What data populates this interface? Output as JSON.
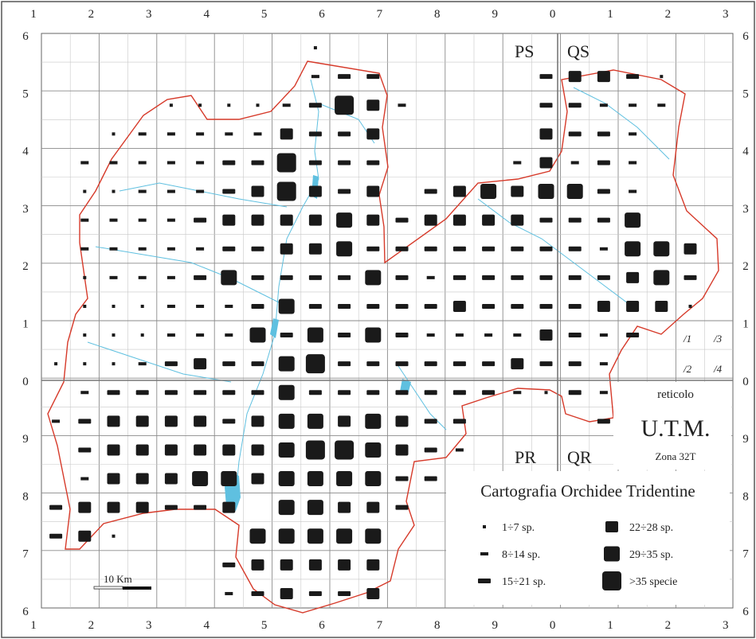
{
  "title": "Cartografia Orchidee Tridentine",
  "grid": {
    "name": "reticolo",
    "system": "U.T.M.",
    "zone": "Zona 32T",
    "top_labels": [
      "1",
      "2",
      "3",
      "4",
      "5",
      "6",
      "7",
      "8",
      "9",
      "0",
      "1",
      "2",
      "3"
    ],
    "bottom_labels": [
      "1",
      "2",
      "3",
      "4",
      "5",
      "6",
      "7",
      "8",
      "9",
      "0",
      "1",
      "2",
      "3"
    ],
    "left_labels": [
      "6",
      "5",
      "4",
      "3",
      "2",
      "1",
      "0",
      "9",
      "8",
      "7",
      "6"
    ],
    "right_labels": [
      "6",
      "5",
      "4",
      "3",
      "2",
      "1",
      "0",
      "9",
      "8",
      "7",
      "6"
    ]
  },
  "quadrants": {
    "nw": "PS",
    "ne": "QS",
    "sw": "PR",
    "se": "QR"
  },
  "subcell_key": [
    "/1",
    "/3",
    "/2",
    "/4"
  ],
  "scale_bar": {
    "label": "10 Km"
  },
  "legend": {
    "items": [
      {
        "label": "1÷7 sp.",
        "level": 1
      },
      {
        "label": "8÷14 sp.",
        "level": 2
      },
      {
        "label": "15÷21 sp.",
        "level": 3
      },
      {
        "label": "22÷28 sp.",
        "level": 4
      },
      {
        "label": "29÷35 sp.",
        "level": 5
      },
      {
        "label": ">35 specie",
        "level": 6
      }
    ]
  },
  "colors": {
    "border": "#d63a2a",
    "water": "#5fc0e0",
    "grid": "#9a9a9a",
    "marker": "#1a1a1a"
  },
  "cells": [
    {
      "row": 1,
      "col": 10,
      "level": 1
    },
    {
      "row": 2,
      "col": 10,
      "level": 2
    },
    {
      "row": 2,
      "col": 11,
      "level": 3
    },
    {
      "row": 2,
      "col": 12,
      "level": 3
    },
    {
      "row": 2,
      "col": 18,
      "level": 3
    },
    {
      "row": 2,
      "col": 19,
      "level": 4
    },
    {
      "row": 2,
      "col": 20,
      "level": 4
    },
    {
      "row": 2,
      "col": 21,
      "level": 3
    },
    {
      "row": 2,
      "col": 22,
      "level": 1
    },
    {
      "row": 3,
      "col": 5,
      "level": 1
    },
    {
      "row": 3,
      "col": 6,
      "level": 1
    },
    {
      "row": 3,
      "col": 7,
      "level": 1
    },
    {
      "row": 3,
      "col": 8,
      "level": 1
    },
    {
      "row": 3,
      "col": 9,
      "level": 2
    },
    {
      "row": 3,
      "col": 10,
      "level": 3
    },
    {
      "row": 3,
      "col": 11,
      "level": 6
    },
    {
      "row": 3,
      "col": 12,
      "level": 4
    },
    {
      "row": 3,
      "col": 13,
      "level": 2
    },
    {
      "row": 3,
      "col": 18,
      "level": 3
    },
    {
      "row": 3,
      "col": 19,
      "level": 3
    },
    {
      "row": 3,
      "col": 20,
      "level": 2
    },
    {
      "row": 3,
      "col": 21,
      "level": 2
    },
    {
      "row": 3,
      "col": 22,
      "level": 2
    },
    {
      "row": 4,
      "col": 3,
      "level": 1
    },
    {
      "row": 4,
      "col": 4,
      "level": 2
    },
    {
      "row": 4,
      "col": 5,
      "level": 2
    },
    {
      "row": 4,
      "col": 6,
      "level": 2
    },
    {
      "row": 4,
      "col": 7,
      "level": 2
    },
    {
      "row": 4,
      "col": 8,
      "level": 2
    },
    {
      "row": 4,
      "col": 9,
      "level": 4
    },
    {
      "row": 4,
      "col": 10,
      "level": 3
    },
    {
      "row": 4,
      "col": 11,
      "level": 3
    },
    {
      "row": 4,
      "col": 12,
      "level": 4
    },
    {
      "row": 4,
      "col": 18,
      "level": 4
    },
    {
      "row": 4,
      "col": 19,
      "level": 3
    },
    {
      "row": 4,
      "col": 20,
      "level": 3
    },
    {
      "row": 4,
      "col": 21,
      "level": 2
    },
    {
      "row": 5,
      "col": 2,
      "level": 2
    },
    {
      "row": 5,
      "col": 3,
      "level": 2
    },
    {
      "row": 5,
      "col": 4,
      "level": 2
    },
    {
      "row": 5,
      "col": 5,
      "level": 2
    },
    {
      "row": 5,
      "col": 6,
      "level": 2
    },
    {
      "row": 5,
      "col": 7,
      "level": 3
    },
    {
      "row": 5,
      "col": 8,
      "level": 3
    },
    {
      "row": 5,
      "col": 9,
      "level": 6
    },
    {
      "row": 5,
      "col": 10,
      "level": 3
    },
    {
      "row": 5,
      "col": 11,
      "level": 3
    },
    {
      "row": 5,
      "col": 12,
      "level": 3
    },
    {
      "row": 5,
      "col": 17,
      "level": 2
    },
    {
      "row": 5,
      "col": 18,
      "level": 4
    },
    {
      "row": 5,
      "col": 19,
      "level": 2
    },
    {
      "row": 5,
      "col": 20,
      "level": 3
    },
    {
      "row": 5,
      "col": 21,
      "level": 2
    },
    {
      "row": 6,
      "col": 2,
      "level": 1
    },
    {
      "row": 6,
      "col": 3,
      "level": 1
    },
    {
      "row": 6,
      "col": 4,
      "level": 2
    },
    {
      "row": 6,
      "col": 5,
      "level": 2
    },
    {
      "row": 6,
      "col": 6,
      "level": 2
    },
    {
      "row": 6,
      "col": 7,
      "level": 3
    },
    {
      "row": 6,
      "col": 8,
      "level": 4
    },
    {
      "row": 6,
      "col": 9,
      "level": 6
    },
    {
      "row": 6,
      "col": 10,
      "level": 4
    },
    {
      "row": 6,
      "col": 11,
      "level": 3
    },
    {
      "row": 6,
      "col": 12,
      "level": 4
    },
    {
      "row": 6,
      "col": 14,
      "level": 3
    },
    {
      "row": 6,
      "col": 15,
      "level": 4
    },
    {
      "row": 6,
      "col": 16,
      "level": 5
    },
    {
      "row": 6,
      "col": 17,
      "level": 4
    },
    {
      "row": 6,
      "col": 18,
      "level": 5
    },
    {
      "row": 6,
      "col": 19,
      "level": 5
    },
    {
      "row": 6,
      "col": 20,
      "level": 3
    },
    {
      "row": 6,
      "col": 21,
      "level": 2
    },
    {
      "row": 7,
      "col": 2,
      "level": 2
    },
    {
      "row": 7,
      "col": 3,
      "level": 2
    },
    {
      "row": 7,
      "col": 4,
      "level": 2
    },
    {
      "row": 7,
      "col": 5,
      "level": 2
    },
    {
      "row": 7,
      "col": 6,
      "level": 3
    },
    {
      "row": 7,
      "col": 7,
      "level": 4
    },
    {
      "row": 7,
      "col": 8,
      "level": 4
    },
    {
      "row": 7,
      "col": 9,
      "level": 4
    },
    {
      "row": 7,
      "col": 10,
      "level": 4
    },
    {
      "row": 7,
      "col": 11,
      "level": 5
    },
    {
      "row": 7,
      "col": 12,
      "level": 4
    },
    {
      "row": 7,
      "col": 13,
      "level": 3
    },
    {
      "row": 7,
      "col": 14,
      "level": 4
    },
    {
      "row": 7,
      "col": 15,
      "level": 4
    },
    {
      "row": 7,
      "col": 16,
      "level": 4
    },
    {
      "row": 7,
      "col": 17,
      "level": 4
    },
    {
      "row": 7,
      "col": 18,
      "level": 3
    },
    {
      "row": 7,
      "col": 19,
      "level": 3
    },
    {
      "row": 7,
      "col": 20,
      "level": 3
    },
    {
      "row": 7,
      "col": 21,
      "level": 5
    },
    {
      "row": 8,
      "col": 2,
      "level": 2
    },
    {
      "row": 8,
      "col": 3,
      "level": 2
    },
    {
      "row": 8,
      "col": 4,
      "level": 2
    },
    {
      "row": 8,
      "col": 5,
      "level": 2
    },
    {
      "row": 8,
      "col": 6,
      "level": 2
    },
    {
      "row": 8,
      "col": 7,
      "level": 3
    },
    {
      "row": 8,
      "col": 8,
      "level": 3
    },
    {
      "row": 8,
      "col": 9,
      "level": 4
    },
    {
      "row": 8,
      "col": 10,
      "level": 4
    },
    {
      "row": 8,
      "col": 11,
      "level": 5
    },
    {
      "row": 8,
      "col": 12,
      "level": 3
    },
    {
      "row": 8,
      "col": 13,
      "level": 3
    },
    {
      "row": 8,
      "col": 14,
      "level": 3
    },
    {
      "row": 8,
      "col": 15,
      "level": 3
    },
    {
      "row": 8,
      "col": 16,
      "level": 3
    },
    {
      "row": 8,
      "col": 17,
      "level": 3
    },
    {
      "row": 8,
      "col": 18,
      "level": 3
    },
    {
      "row": 8,
      "col": 19,
      "level": 3
    },
    {
      "row": 8,
      "col": 20,
      "level": 2
    },
    {
      "row": 8,
      "col": 21,
      "level": 5
    },
    {
      "row": 8,
      "col": 22,
      "level": 5
    },
    {
      "row": 8,
      "col": 23,
      "level": 4
    },
    {
      "row": 9,
      "col": 2,
      "level": 1
    },
    {
      "row": 9,
      "col": 3,
      "level": 2
    },
    {
      "row": 9,
      "col": 4,
      "level": 2
    },
    {
      "row": 9,
      "col": 5,
      "level": 2
    },
    {
      "row": 9,
      "col": 6,
      "level": 3
    },
    {
      "row": 9,
      "col": 7,
      "level": 5
    },
    {
      "row": 9,
      "col": 8,
      "level": 3
    },
    {
      "row": 9,
      "col": 9,
      "level": 3
    },
    {
      "row": 9,
      "col": 10,
      "level": 3
    },
    {
      "row": 9,
      "col": 11,
      "level": 3
    },
    {
      "row": 9,
      "col": 12,
      "level": 5
    },
    {
      "row": 9,
      "col": 13,
      "level": 3
    },
    {
      "row": 9,
      "col": 14,
      "level": 2
    },
    {
      "row": 9,
      "col": 15,
      "level": 3
    },
    {
      "row": 9,
      "col": 16,
      "level": 3
    },
    {
      "row": 9,
      "col": 17,
      "level": 3
    },
    {
      "row": 9,
      "col": 18,
      "level": 3
    },
    {
      "row": 9,
      "col": 19,
      "level": 3
    },
    {
      "row": 9,
      "col": 20,
      "level": 3
    },
    {
      "row": 9,
      "col": 21,
      "level": 4
    },
    {
      "row": 9,
      "col": 22,
      "level": 5
    },
    {
      "row": 9,
      "col": 23,
      "level": 3
    },
    {
      "row": 10,
      "col": 2,
      "level": 1
    },
    {
      "row": 10,
      "col": 3,
      "level": 1
    },
    {
      "row": 10,
      "col": 4,
      "level": 1
    },
    {
      "row": 10,
      "col": 5,
      "level": 2
    },
    {
      "row": 10,
      "col": 6,
      "level": 2
    },
    {
      "row": 10,
      "col": 7,
      "level": 2
    },
    {
      "row": 10,
      "col": 8,
      "level": 3
    },
    {
      "row": 10,
      "col": 9,
      "level": 5
    },
    {
      "row": 10,
      "col": 10,
      "level": 3
    },
    {
      "row": 10,
      "col": 11,
      "level": 3
    },
    {
      "row": 10,
      "col": 12,
      "level": 3
    },
    {
      "row": 10,
      "col": 13,
      "level": 3
    },
    {
      "row": 10,
      "col": 14,
      "level": 3
    },
    {
      "row": 10,
      "col": 15,
      "level": 4
    },
    {
      "row": 10,
      "col": 16,
      "level": 3
    },
    {
      "row": 10,
      "col": 17,
      "level": 3
    },
    {
      "row": 10,
      "col": 18,
      "level": 3
    },
    {
      "row": 10,
      "col": 19,
      "level": 3
    },
    {
      "row": 10,
      "col": 20,
      "level": 4
    },
    {
      "row": 10,
      "col": 21,
      "level": 4
    },
    {
      "row": 10,
      "col": 22,
      "level": 4
    },
    {
      "row": 10,
      "col": 23,
      "level": 1
    },
    {
      "row": 11,
      "col": 2,
      "level": 1
    },
    {
      "row": 11,
      "col": 3,
      "level": 1
    },
    {
      "row": 11,
      "col": 4,
      "level": 1
    },
    {
      "row": 11,
      "col": 5,
      "level": 2
    },
    {
      "row": 11,
      "col": 6,
      "level": 2
    },
    {
      "row": 11,
      "col": 7,
      "level": 2
    },
    {
      "row": 11,
      "col": 8,
      "level": 5
    },
    {
      "row": 11,
      "col": 9,
      "level": 3
    },
    {
      "row": 11,
      "col": 10,
      "level": 5
    },
    {
      "row": 11,
      "col": 11,
      "level": 3
    },
    {
      "row": 11,
      "col": 12,
      "level": 5
    },
    {
      "row": 11,
      "col": 13,
      "level": 3
    },
    {
      "row": 11,
      "col": 14,
      "level": 2
    },
    {
      "row": 11,
      "col": 15,
      "level": 2
    },
    {
      "row": 11,
      "col": 16,
      "level": 2
    },
    {
      "row": 11,
      "col": 17,
      "level": 2
    },
    {
      "row": 11,
      "col": 18,
      "level": 4
    },
    {
      "row": 11,
      "col": 19,
      "level": 3
    },
    {
      "row": 11,
      "col": 20,
      "level": 2
    },
    {
      "row": 11,
      "col": 21,
      "level": 3
    },
    {
      "row": 12,
      "col": 1,
      "level": 1
    },
    {
      "row": 12,
      "col": 2,
      "level": 1
    },
    {
      "row": 12,
      "col": 3,
      "level": 1
    },
    {
      "row": 12,
      "col": 4,
      "level": 2
    },
    {
      "row": 12,
      "col": 5,
      "level": 3
    },
    {
      "row": 12,
      "col": 6,
      "level": 4
    },
    {
      "row": 12,
      "col": 7,
      "level": 3
    },
    {
      "row": 12,
      "col": 8,
      "level": 3
    },
    {
      "row": 12,
      "col": 9,
      "level": 5
    },
    {
      "row": 12,
      "col": 10,
      "level": 6
    },
    {
      "row": 12,
      "col": 11,
      "level": 3
    },
    {
      "row": 12,
      "col": 12,
      "level": 3
    },
    {
      "row": 12,
      "col": 13,
      "level": 3
    },
    {
      "row": 12,
      "col": 14,
      "level": 3
    },
    {
      "row": 12,
      "col": 15,
      "level": 3
    },
    {
      "row": 12,
      "col": 16,
      "level": 3
    },
    {
      "row": 12,
      "col": 17,
      "level": 4
    },
    {
      "row": 12,
      "col": 18,
      "level": 3
    },
    {
      "row": 12,
      "col": 19,
      "level": 3
    },
    {
      "row": 12,
      "col": 20,
      "level": 2
    },
    {
      "row": 13,
      "col": 2,
      "level": 2
    },
    {
      "row": 13,
      "col": 3,
      "level": 3
    },
    {
      "row": 13,
      "col": 4,
      "level": 3
    },
    {
      "row": 13,
      "col": 5,
      "level": 3
    },
    {
      "row": 13,
      "col": 6,
      "level": 3
    },
    {
      "row": 13,
      "col": 7,
      "level": 3
    },
    {
      "row": 13,
      "col": 8,
      "level": 3
    },
    {
      "row": 13,
      "col": 9,
      "level": 5
    },
    {
      "row": 13,
      "col": 10,
      "level": 3
    },
    {
      "row": 13,
      "col": 11,
      "level": 3
    },
    {
      "row": 13,
      "col": 12,
      "level": 3
    },
    {
      "row": 13,
      "col": 13,
      "level": 3
    },
    {
      "row": 13,
      "col": 14,
      "level": 3
    },
    {
      "row": 13,
      "col": 15,
      "level": 3
    },
    {
      "row": 13,
      "col": 16,
      "level": 3
    },
    {
      "row": 13,
      "col": 17,
      "level": 2
    },
    {
      "row": 13,
      "col": 18,
      "level": 1
    },
    {
      "row": 13,
      "col": 19,
      "level": 3
    },
    {
      "row": 13,
      "col": 20,
      "level": 2
    },
    {
      "row": 14,
      "col": 1,
      "level": 2
    },
    {
      "row": 14,
      "col": 2,
      "level": 3
    },
    {
      "row": 14,
      "col": 3,
      "level": 4
    },
    {
      "row": 14,
      "col": 4,
      "level": 4
    },
    {
      "row": 14,
      "col": 5,
      "level": 4
    },
    {
      "row": 14,
      "col": 6,
      "level": 4
    },
    {
      "row": 14,
      "col": 7,
      "level": 3
    },
    {
      "row": 14,
      "col": 8,
      "level": 4
    },
    {
      "row": 14,
      "col": 9,
      "level": 5
    },
    {
      "row": 14,
      "col": 10,
      "level": 5
    },
    {
      "row": 14,
      "col": 11,
      "level": 4
    },
    {
      "row": 14,
      "col": 12,
      "level": 5
    },
    {
      "row": 14,
      "col": 13,
      "level": 4
    },
    {
      "row": 14,
      "col": 14,
      "level": 3
    },
    {
      "row": 14,
      "col": 15,
      "level": 3
    },
    {
      "row": 14,
      "col": 20,
      "level": 3
    },
    {
      "row": 15,
      "col": 2,
      "level": 3
    },
    {
      "row": 15,
      "col": 3,
      "level": 4
    },
    {
      "row": 15,
      "col": 4,
      "level": 4
    },
    {
      "row": 15,
      "col": 5,
      "level": 4
    },
    {
      "row": 15,
      "col": 6,
      "level": 4
    },
    {
      "row": 15,
      "col": 7,
      "level": 4
    },
    {
      "row": 15,
      "col": 8,
      "level": 4
    },
    {
      "row": 15,
      "col": 9,
      "level": 5
    },
    {
      "row": 15,
      "col": 10,
      "level": 6
    },
    {
      "row": 15,
      "col": 11,
      "level": 6
    },
    {
      "row": 15,
      "col": 12,
      "level": 5
    },
    {
      "row": 15,
      "col": 13,
      "level": 4
    },
    {
      "row": 15,
      "col": 14,
      "level": 3
    },
    {
      "row": 15,
      "col": 15,
      "level": 2
    },
    {
      "row": 16,
      "col": 2,
      "level": 2
    },
    {
      "row": 16,
      "col": 3,
      "level": 4
    },
    {
      "row": 16,
      "col": 4,
      "level": 4
    },
    {
      "row": 16,
      "col": 5,
      "level": 4
    },
    {
      "row": 16,
      "col": 6,
      "level": 5
    },
    {
      "row": 16,
      "col": 7,
      "level": 5
    },
    {
      "row": 16,
      "col": 8,
      "level": 4
    },
    {
      "row": 16,
      "col": 9,
      "level": 5
    },
    {
      "row": 16,
      "col": 10,
      "level": 5
    },
    {
      "row": 16,
      "col": 11,
      "level": 5
    },
    {
      "row": 16,
      "col": 12,
      "level": 5
    },
    {
      "row": 16,
      "col": 13,
      "level": 3
    },
    {
      "row": 16,
      "col": 14,
      "level": 3
    },
    {
      "row": 17,
      "col": 1,
      "level": 3
    },
    {
      "row": 17,
      "col": 2,
      "level": 4
    },
    {
      "row": 17,
      "col": 3,
      "level": 4
    },
    {
      "row": 17,
      "col": 4,
      "level": 4
    },
    {
      "row": 17,
      "col": 5,
      "level": 3
    },
    {
      "row": 17,
      "col": 6,
      "level": 3
    },
    {
      "row": 17,
      "col": 7,
      "level": 4
    },
    {
      "row": 17,
      "col": 9,
      "level": 5
    },
    {
      "row": 17,
      "col": 10,
      "level": 5
    },
    {
      "row": 17,
      "col": 11,
      "level": 4
    },
    {
      "row": 17,
      "col": 12,
      "level": 4
    },
    {
      "row": 17,
      "col": 13,
      "level": 3
    },
    {
      "row": 18,
      "col": 1,
      "level": 3
    },
    {
      "row": 18,
      "col": 2,
      "level": 4
    },
    {
      "row": 18,
      "col": 3,
      "level": 1
    },
    {
      "row": 18,
      "col": 8,
      "level": 5
    },
    {
      "row": 18,
      "col": 9,
      "level": 5
    },
    {
      "row": 18,
      "col": 10,
      "level": 5
    },
    {
      "row": 18,
      "col": 11,
      "level": 5
    },
    {
      "row": 18,
      "col": 12,
      "level": 5
    },
    {
      "row": 19,
      "col": 7,
      "level": 3
    },
    {
      "row": 19,
      "col": 8,
      "level": 4
    },
    {
      "row": 19,
      "col": 9,
      "level": 4
    },
    {
      "row": 19,
      "col": 10,
      "level": 4
    },
    {
      "row": 19,
      "col": 11,
      "level": 4
    },
    {
      "row": 19,
      "col": 12,
      "level": 4
    },
    {
      "row": 20,
      "col": 7,
      "level": 2
    },
    {
      "row": 20,
      "col": 8,
      "level": 3
    },
    {
      "row": 20,
      "col": 9,
      "level": 4
    },
    {
      "row": 20,
      "col": 10,
      "level": 3
    },
    {
      "row": 20,
      "col": 11,
      "level": 3
    },
    {
      "row": 20,
      "col": 12,
      "level": 4
    }
  ]
}
